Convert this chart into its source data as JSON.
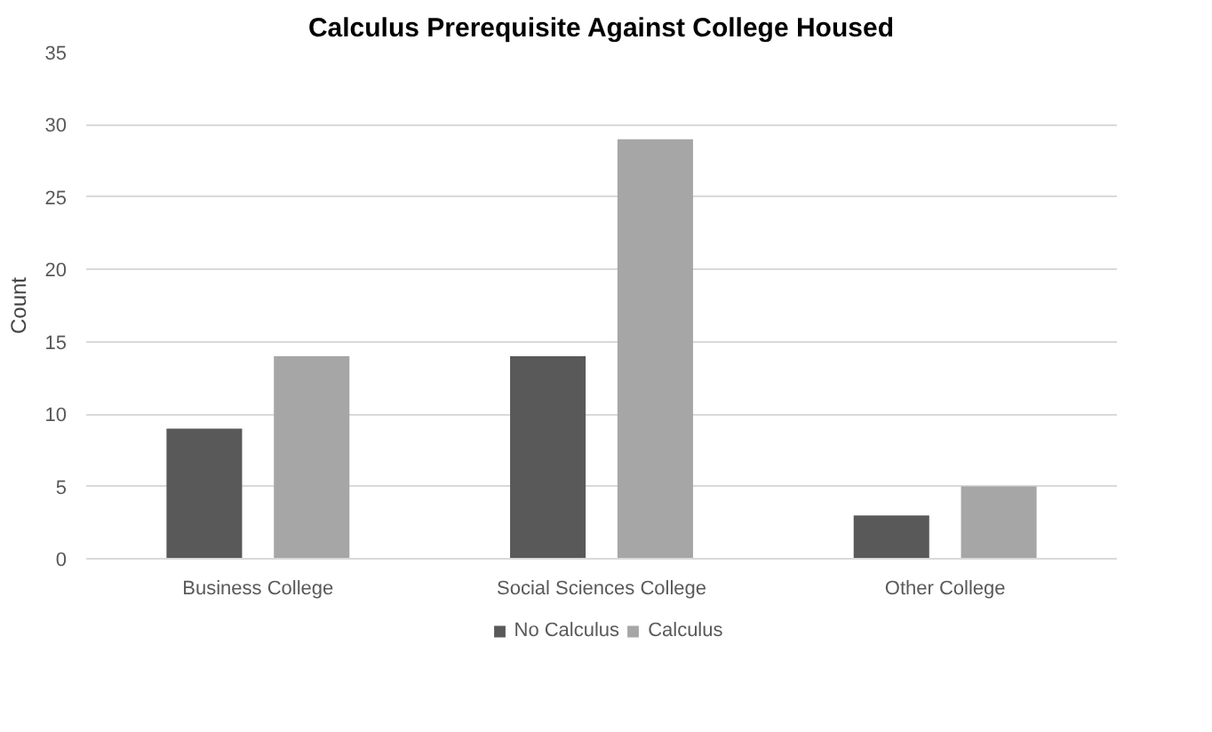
{
  "chart_data": {
    "type": "bar",
    "title": "Calculus Prerequisite Against College Housed",
    "ylabel": "Count",
    "categories": [
      "Business College",
      "Social Sciences College",
      "Other College"
    ],
    "series": [
      {
        "name": "No Calculus",
        "color": "#595959",
        "values": [
          9,
          14,
          3
        ]
      },
      {
        "name": "Calculus",
        "color": "#a6a6a6",
        "values": [
          14,
          29,
          5
        ]
      }
    ],
    "ylim": [
      0,
      35
    ],
    "yticks": [
      0,
      5,
      10,
      15,
      20,
      25,
      30,
      35
    ],
    "grid": "y",
    "legend": "bottom"
  }
}
